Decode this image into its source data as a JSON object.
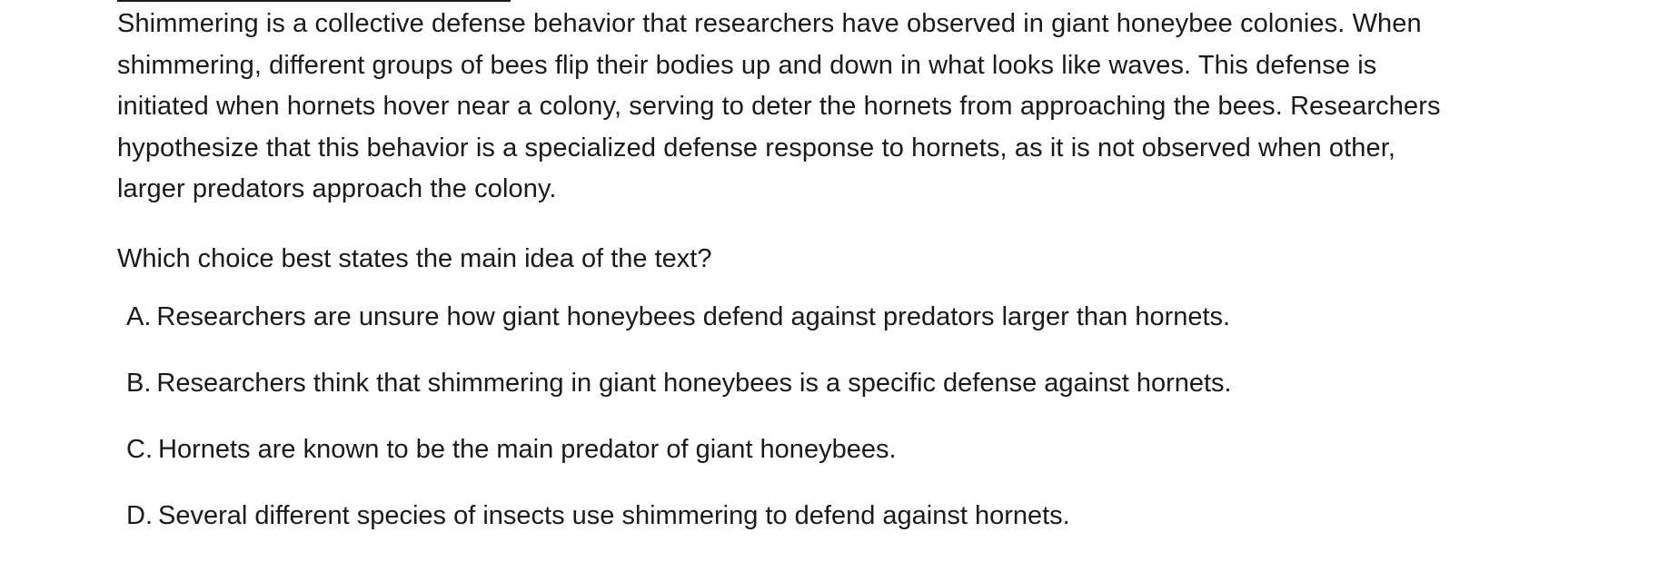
{
  "passage": {
    "lines": [
      "Shimmering is a collective defense behavior that researchers have observed in giant honeybee colonies. When",
      "shimmering, different groups of bees flip their bodies up and down in what looks like waves. This defense is",
      "initiated when hornets hover near a colony, serving to deter the hornets from approaching the bees. Researchers",
      "hypothesize that this behavior is a specialized defense response to hornets, as it is not observed when other,",
      "larger predators approach the colony."
    ]
  },
  "question": {
    "text": "Which choice best states the main idea of the text?"
  },
  "choices": [
    {
      "letter": "A.",
      "text": "Researchers are unsure how giant honeybees defend against predators larger than hornets."
    },
    {
      "letter": "B.",
      "text": "Researchers think that shimmering in giant honeybees is a specific defense against hornets."
    },
    {
      "letter": "C.",
      "text": "Hornets are known to be the main predator of giant honeybees."
    },
    {
      "letter": "D.",
      "text": "Several different species of insects use shimmering to defend against hornets."
    }
  ]
}
